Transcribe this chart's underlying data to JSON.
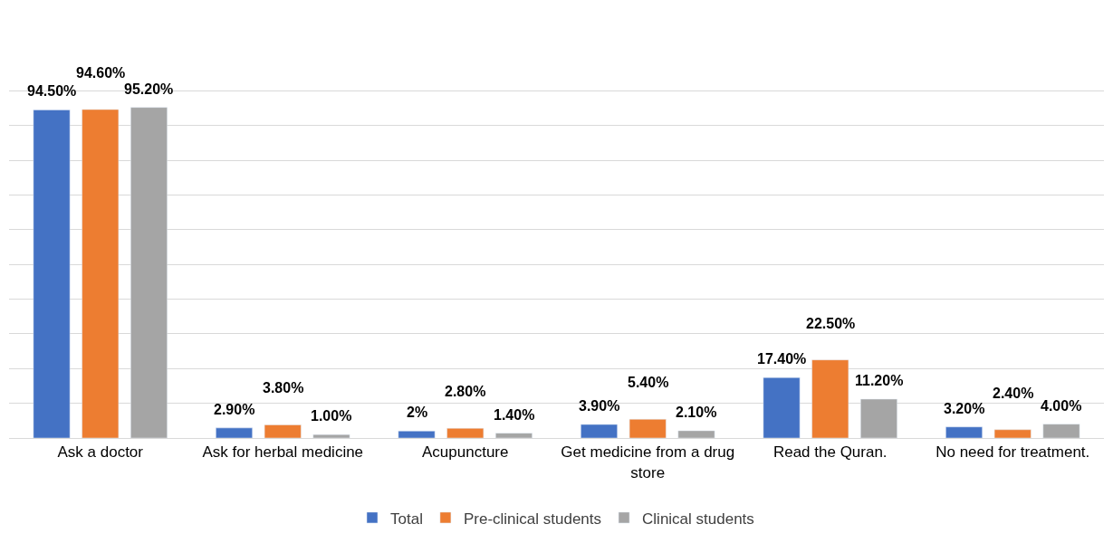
{
  "chart_data": {
    "type": "bar",
    "categories": [
      "Ask a doctor",
      "Ask for herbal medicine",
      "Acupuncture",
      "Get medicine from a drug store",
      "Read the Quran.",
      "No need for treatment."
    ],
    "series": [
      {
        "name": "Total",
        "color": "#4472c4",
        "values": [
          94.5,
          2.9,
          2,
          3.9,
          17.4,
          3.2
        ],
        "value_labels": [
          "94.50%",
          "2.90%",
          "2%",
          "3.90%",
          "17.40%",
          "3.20%"
        ]
      },
      {
        "name": "Pre-clinical students",
        "color": "#ed7d31",
        "values": [
          94.6,
          3.8,
          2.8,
          5.4,
          22.5,
          2.4
        ],
        "value_labels": [
          "94.60%",
          "3.80%",
          "2.80%",
          "5.40%",
          "22.50%",
          "2.40%"
        ]
      },
      {
        "name": "Clinical students",
        "color": "#a5a5a5",
        "values": [
          95.2,
          1.0,
          1.4,
          2.1,
          11.2,
          4.0
        ],
        "value_labels": [
          "95.20%",
          "1.00%",
          "1.40%",
          "2.10%",
          "11.20%",
          "4.00%"
        ]
      }
    ],
    "grid": "y",
    "legend": "bottom",
    "tick_labels": "x"
  }
}
